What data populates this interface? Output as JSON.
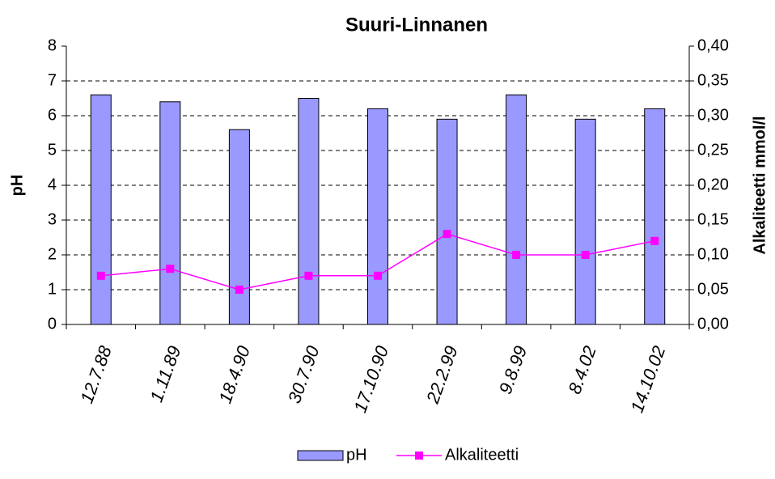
{
  "chart_data": {
    "type": "bar_line",
    "title": "Suuri-Linnanen",
    "y_label": "pH",
    "y2_label": "Alkaliteetti mmol/l",
    "categories": [
      "12.7.88",
      "1.11.89",
      "18.4.90",
      "30.7.90",
      "17.10.90",
      "22.2.99",
      "9.8.99",
      "8.4.02",
      "14.10.02"
    ],
    "series": [
      {
        "name": "pH",
        "type": "bar",
        "color": "#9999ff",
        "values": [
          6.6,
          6.4,
          5.6,
          6.5,
          6.2,
          5.9,
          6.6,
          5.9,
          6.2
        ]
      },
      {
        "name": "Alkaliteetti",
        "type": "line",
        "axis": "y2",
        "color": "#ff00ff",
        "values": [
          0.07,
          0.08,
          0.05,
          0.07,
          0.07,
          0.13,
          0.1,
          0.1,
          0.12
        ]
      }
    ],
    "ylim": [
      0,
      8
    ],
    "yticks": [
      0,
      1,
      2,
      3,
      4,
      5,
      6,
      7,
      8
    ],
    "y2lim": [
      0,
      0.4
    ],
    "y2ticks": [
      {
        "value": 0,
        "label": "0,00"
      },
      {
        "value": 0.05,
        "label": "0,05"
      },
      {
        "value": 0.1,
        "label": "0,10"
      },
      {
        "value": 0.15,
        "label": "0,15"
      },
      {
        "value": 0.2,
        "label": "0,20"
      },
      {
        "value": 0.25,
        "label": "0,25"
      },
      {
        "value": 0.3,
        "label": "0,30"
      },
      {
        "value": 0.35,
        "label": "0,35"
      },
      {
        "value": 0.4,
        "label": "0,40"
      }
    ],
    "grid": true,
    "legend": "bottom"
  }
}
